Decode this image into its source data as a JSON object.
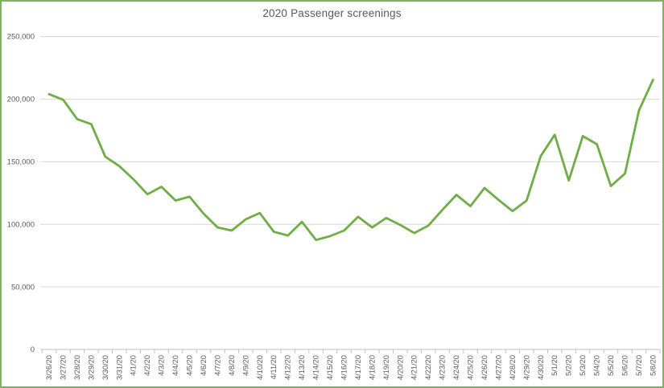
{
  "chart_data": {
    "type": "line",
    "title": "2020 Passenger screenings",
    "xlabel": "",
    "ylabel": "",
    "x": [
      "3/26/20",
      "3/27/20",
      "3/28/20",
      "3/29/20",
      "3/30/20",
      "3/31/20",
      "4/1/20",
      "4/2/20",
      "4/3/20",
      "4/4/20",
      "4/5/20",
      "4/6/20",
      "4/7/20",
      "4/8/20",
      "4/9/20",
      "4/10/20",
      "4/11/20",
      "4/12/20",
      "4/13/20",
      "4/14/20",
      "4/15/20",
      "4/16/20",
      "4/17/20",
      "4/18/20",
      "4/19/20",
      "4/20/20",
      "4/21/20",
      "4/22/20",
      "4/23/20",
      "4/24/20",
      "4/25/20",
      "4/26/20",
      "4/27/20",
      "4/28/20",
      "4/29/20",
      "4/30/20",
      "5/1/20",
      "5/2/20",
      "5/3/20",
      "5/4/20",
      "5/5/20",
      "5/6/20",
      "5/7/20",
      "5/8/20"
    ],
    "values": [
      204000,
      199500,
      184000,
      180000,
      154000,
      146500,
      136000,
      124000,
      130000,
      119000,
      122000,
      108500,
      97500,
      95000,
      104000,
      109000,
      94000,
      91000,
      102000,
      87500,
      90500,
      95000,
      106000,
      97500,
      105000,
      99500,
      93000,
      99000,
      111500,
      123500,
      114500,
      129000,
      119500,
      110500,
      119000,
      154500,
      171500,
      135000,
      170500,
      164000,
      130500,
      140500,
      191000,
      215500
    ],
    "ylim": [
      0,
      250000
    ],
    "ytick_interval": 50000,
    "ytick_labels": [
      "0",
      "50,000",
      "100,000",
      "150,000",
      "200,000",
      "250,000"
    ],
    "grid": true,
    "legend": "none"
  },
  "colors": {
    "line": "#70AD47",
    "frame_border": "#7FB355",
    "gridline": "#D9D9D9",
    "axis_line": "#BFBFBF",
    "title_text": "#595959",
    "axis_text": "#595959"
  }
}
